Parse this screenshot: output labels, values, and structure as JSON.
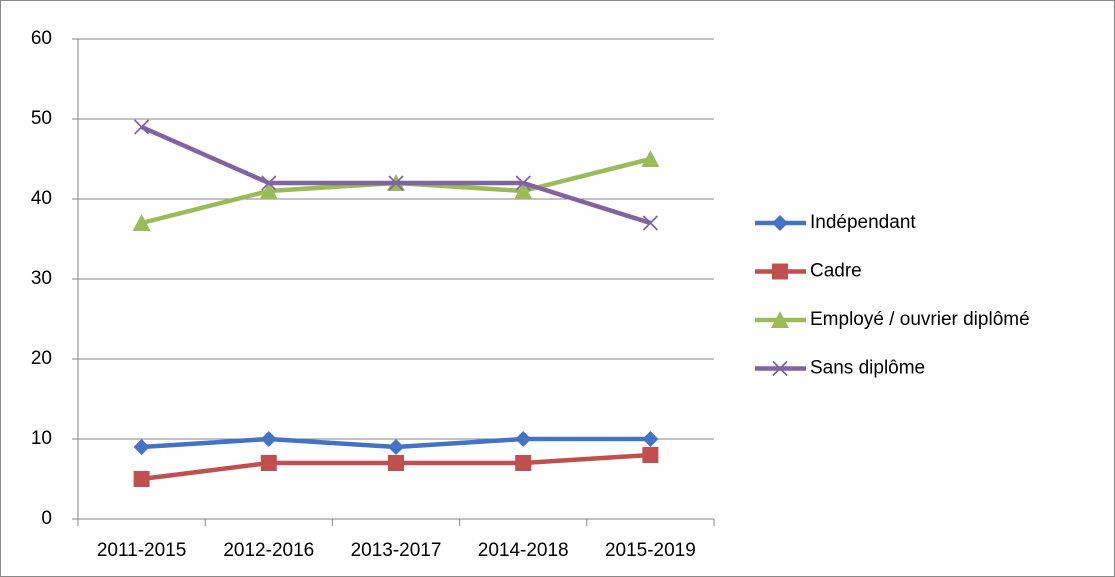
{
  "chart_data": {
    "type": "line",
    "categories": [
      "2011-2015",
      "2012-2016",
      "2013-2017",
      "2014-2018",
      "2015-2019"
    ],
    "series": [
      {
        "name": "Indépendant",
        "color": "#4472c4",
        "marker": "diamond",
        "values": [
          9,
          10,
          9,
          10,
          10
        ]
      },
      {
        "name": "Cadre",
        "color": "#c0504d",
        "marker": "square",
        "values": [
          5,
          7,
          7,
          7,
          8
        ]
      },
      {
        "name": "Employé / ouvrier diplômé",
        "color": "#9bbb59",
        "marker": "triangle",
        "values": [
          37,
          41,
          42,
          41,
          45
        ]
      },
      {
        "name": "Sans diplôme",
        "color": "#8064a2",
        "marker": "x",
        "values": [
          49,
          42,
          42,
          42,
          37
        ]
      }
    ],
    "ylim": [
      0,
      60
    ],
    "yticks": [
      0,
      10,
      20,
      30,
      40,
      50,
      60
    ],
    "grid": true,
    "legend": "right"
  }
}
